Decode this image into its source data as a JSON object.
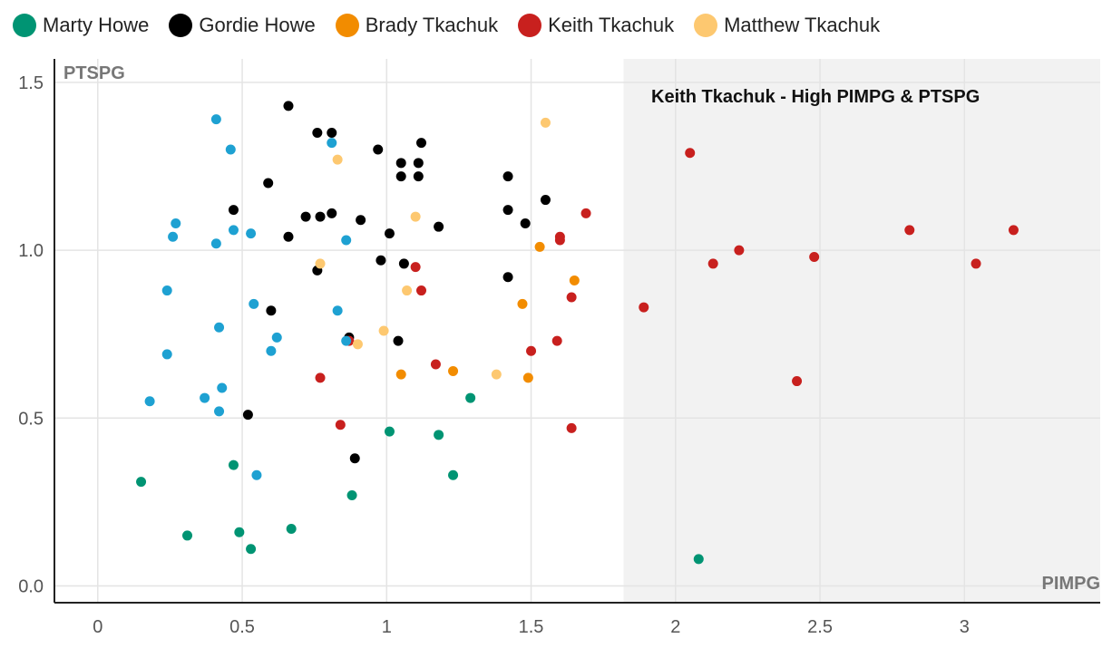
{
  "chart_data": {
    "type": "scatter",
    "xlabel": "PIMPG",
    "ylabel": "PTSPG",
    "xlim": [
      -0.15,
      3.47
    ],
    "ylim": [
      -0.05,
      1.57
    ],
    "x_ticks": [
      0,
      0.5,
      1,
      1.5,
      2,
      2.5,
      3
    ],
    "x_tick_labels": [
      "0",
      "0.5",
      "1",
      "1.5",
      "2",
      "2.5",
      "3"
    ],
    "y_ticks": [
      0.0,
      0.5,
      1.0,
      1.5
    ],
    "y_tick_labels": [
      "0.0",
      "0.5",
      "1.0",
      "1.5"
    ],
    "grid": true,
    "legend_position": "top-left",
    "highlight_region": {
      "x_from": 1.82,
      "x_to": 3.47,
      "color": "#f2f2f2"
    },
    "annotation": "Keith Tkachuk - High PIMPG & PTSPG",
    "colors": {
      "Marty Howe": "#009473",
      "Gordie Howe": "#000000",
      "Brady Tkachuk": "#f28c00",
      "Keith Tkachuk": "#c8201e",
      "Matthew Tkachuk": "#fdc870",
      "unlisted": "#1ea1d2"
    },
    "series": [
      {
        "name": "Marty Howe",
        "color": "#009473",
        "points": [
          [
            0.15,
            0.31
          ],
          [
            0.31,
            0.15
          ],
          [
            0.47,
            0.36
          ],
          [
            0.49,
            0.16
          ],
          [
            0.53,
            0.11
          ],
          [
            0.67,
            0.17
          ],
          [
            0.88,
            0.27
          ],
          [
            1.01,
            0.46
          ],
          [
            1.18,
            0.45
          ],
          [
            1.23,
            0.33
          ],
          [
            1.29,
            0.56
          ],
          [
            2.08,
            0.08
          ]
        ]
      },
      {
        "name": "Gordie Howe",
        "color": "#000000",
        "points": [
          [
            0.47,
            1.12
          ],
          [
            0.52,
            0.51
          ],
          [
            0.59,
            1.2
          ],
          [
            0.6,
            0.82
          ],
          [
            0.66,
            1.43
          ],
          [
            0.66,
            1.04
          ],
          [
            0.72,
            1.1
          ],
          [
            0.76,
            1.35
          ],
          [
            0.76,
            0.94
          ],
          [
            0.77,
            1.1
          ],
          [
            0.81,
            1.35
          ],
          [
            0.81,
            1.11
          ],
          [
            0.87,
            0.74
          ],
          [
            0.89,
            0.38
          ],
          [
            0.91,
            1.09
          ],
          [
            0.97,
            1.3
          ],
          [
            0.98,
            0.97
          ],
          [
            1.01,
            1.05
          ],
          [
            1.04,
            0.73
          ],
          [
            1.05,
            1.26
          ],
          [
            1.05,
            1.22
          ],
          [
            1.06,
            0.96
          ],
          [
            1.11,
            1.22
          ],
          [
            1.12,
            1.32
          ],
          [
            1.11,
            1.26
          ],
          [
            1.18,
            1.07
          ],
          [
            1.42,
            1.22
          ],
          [
            1.42,
            1.12
          ],
          [
            1.42,
            0.92
          ],
          [
            1.48,
            1.08
          ],
          [
            1.55,
            1.15
          ]
        ]
      },
      {
        "name": "Brady Tkachuk",
        "color": "#f28c00",
        "points": [
          [
            1.05,
            0.63
          ],
          [
            1.23,
            0.64
          ],
          [
            1.47,
            0.84
          ],
          [
            1.49,
            0.62
          ],
          [
            1.53,
            1.01
          ],
          [
            1.65,
            0.91
          ]
        ]
      },
      {
        "name": "Keith Tkachuk",
        "color": "#c8201e",
        "points": [
          [
            0.77,
            0.62
          ],
          [
            0.84,
            0.48
          ],
          [
            0.87,
            0.73
          ],
          [
            1.1,
            0.95
          ],
          [
            1.12,
            0.88
          ],
          [
            1.17,
            0.66
          ],
          [
            1.5,
            0.7
          ],
          [
            1.59,
            0.73
          ],
          [
            1.6,
            1.03
          ],
          [
            1.6,
            1.04
          ],
          [
            1.64,
            0.86
          ],
          [
            1.64,
            0.47
          ],
          [
            1.69,
            1.11
          ],
          [
            1.89,
            0.83
          ],
          [
            2.05,
            1.29
          ],
          [
            2.13,
            0.96
          ],
          [
            2.22,
            1.0
          ],
          [
            2.42,
            0.61
          ],
          [
            2.48,
            0.98
          ],
          [
            2.81,
            1.06
          ],
          [
            3.04,
            0.96
          ],
          [
            3.17,
            1.06
          ]
        ]
      },
      {
        "name": "Matthew Tkachuk",
        "color": "#fdc870",
        "points": [
          [
            0.77,
            0.96
          ],
          [
            0.83,
            1.27
          ],
          [
            0.9,
            0.72
          ],
          [
            0.99,
            0.76
          ],
          [
            1.07,
            0.88
          ],
          [
            1.1,
            1.1
          ],
          [
            1.38,
            0.63
          ],
          [
            1.55,
            1.38
          ]
        ]
      },
      {
        "name": "",
        "color": "#1ea1d2",
        "points": [
          [
            0.18,
            0.55
          ],
          [
            0.24,
            0.88
          ],
          [
            0.24,
            0.69
          ],
          [
            0.26,
            1.04
          ],
          [
            0.27,
            1.08
          ],
          [
            0.37,
            0.56
          ],
          [
            0.41,
            1.02
          ],
          [
            0.41,
            1.39
          ],
          [
            0.42,
            0.52
          ],
          [
            0.42,
            0.77
          ],
          [
            0.43,
            0.59
          ],
          [
            0.46,
            1.3
          ],
          [
            0.47,
            1.06
          ],
          [
            0.53,
            1.05
          ],
          [
            0.54,
            0.84
          ],
          [
            0.55,
            0.33
          ],
          [
            0.6,
            0.7
          ],
          [
            0.62,
            0.74
          ],
          [
            0.81,
            1.32
          ],
          [
            0.83,
            0.82
          ],
          [
            0.86,
            1.03
          ],
          [
            0.86,
            0.73
          ]
        ]
      }
    ]
  }
}
